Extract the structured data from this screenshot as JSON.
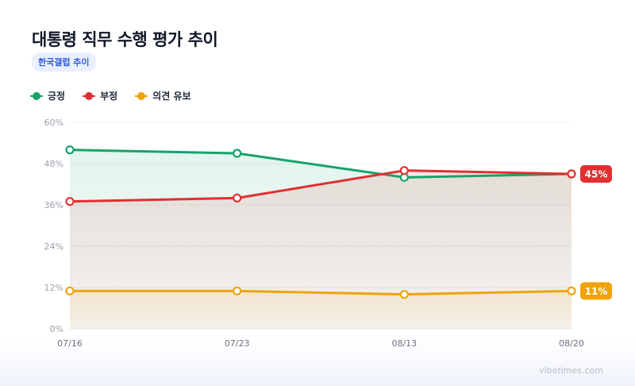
{
  "title": "대통령 직무 수행 평가 추이",
  "source": "한국갤럽 추이",
  "watermark": "vibetimes.com",
  "chart_data": {
    "type": "line",
    "categories": [
      "07/16",
      "07/23",
      "08/13",
      "08/20"
    ],
    "yticks": [
      "0%",
      "12%",
      "24%",
      "36%",
      "48%",
      "60%"
    ],
    "ylim": [
      0,
      60
    ],
    "grid": true,
    "legend_position": "top-left",
    "series": [
      {
        "name": "긍정",
        "values": [
          52,
          51,
          44,
          45
        ],
        "color": "#16a36b"
      },
      {
        "name": "부정",
        "values": [
          37,
          38,
          46,
          45
        ],
        "color": "#e03030"
      },
      {
        "name": "의견 유보",
        "values": [
          11,
          11,
          10,
          11
        ],
        "color": "#f0a30c"
      }
    ],
    "end_labels": [
      {
        "series": "부정",
        "text": "45%"
      },
      {
        "series": "의견 유보",
        "text": "11%"
      }
    ]
  }
}
